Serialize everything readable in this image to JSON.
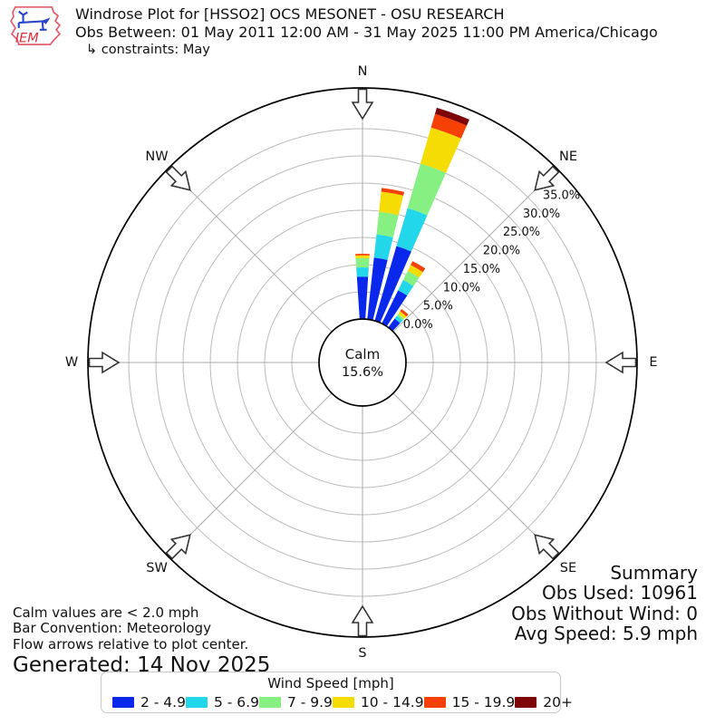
{
  "header": {
    "logo_text": "IEM",
    "title": "Windrose Plot for [HSSO2] OCS MESONET - OSU RESEARCH",
    "subtitle": "Obs Between: 01 May 2011 12:00 AM - 31 May 2025 11:00 PM America/Chicago",
    "constraints": "↳ constraints: May"
  },
  "chart": {
    "compass": [
      {
        "label": "N",
        "deg": 0
      },
      {
        "label": "NE",
        "deg": 45
      },
      {
        "label": "E",
        "deg": 90
      },
      {
        "label": "SE",
        "deg": 135
      },
      {
        "label": "S",
        "deg": 180
      },
      {
        "label": "SW",
        "deg": 225
      },
      {
        "label": "W",
        "deg": 270
      },
      {
        "label": "NW",
        "deg": 315
      }
    ],
    "calm": {
      "label": "Calm",
      "value": "15.6%"
    }
  },
  "chart_data": {
    "type": "windrose",
    "units": "percent frequency of wind direction by speed bin",
    "direction_bin_deg": 10,
    "calm_percent": 15.6,
    "radial_ticks": [
      0,
      5,
      10,
      15,
      20,
      25,
      30,
      35
    ],
    "radial_tick_labels": [
      "0.0%",
      "5.0%",
      "10.0%",
      "15.0%",
      "20.0%",
      "25.0%",
      "30.0%",
      "35.0%"
    ],
    "speed_bins": [
      {
        "label": "2 - 4.9",
        "color": "#0a28eb"
      },
      {
        "label": "5 - 6.9",
        "color": "#23d7eb"
      },
      {
        "label": "7 - 9.9",
        "color": "#87f082"
      },
      {
        "label": "10 - 14.9",
        "color": "#f5dc05"
      },
      {
        "label": "15 - 19.9",
        "color": "#f54105"
      },
      {
        "label": "20+",
        "color": "#7d050a"
      }
    ],
    "petals": [
      {
        "dir_deg": 0,
        "values": [
          7.8,
          1.7,
          1.7,
          0.5,
          0.3,
          0
        ]
      },
      {
        "dir_deg": 10,
        "values": [
          11.4,
          4.3,
          4.2,
          3.7,
          0.7,
          0
        ]
      },
      {
        "dir_deg": 20,
        "values": [
          14.3,
          7.3,
          8.5,
          6.9,
          2.6,
          1.2
        ]
      },
      {
        "dir_deg": 30,
        "values": [
          6.8,
          2.1,
          1.9,
          1.2,
          0.8,
          0
        ]
      },
      {
        "dir_deg": 40,
        "values": [
          2.0,
          0.7,
          0.4,
          0.6,
          0.5,
          0
        ]
      }
    ]
  },
  "summary": {
    "title": "Summary",
    "obs_used": "Obs Used: 10961",
    "obs_without_wind": "Obs Without Wind: 0",
    "avg_speed": "Avg Speed: 5.9 mph"
  },
  "notes": {
    "line1": "Calm values are < 2.0 mph",
    "line2": "Bar Convention: Meteorology",
    "line3": "Flow arrows relative to plot center.",
    "generated": "Generated: 14 Nov 2025"
  },
  "legend": {
    "title": "Wind Speed [mph]"
  }
}
